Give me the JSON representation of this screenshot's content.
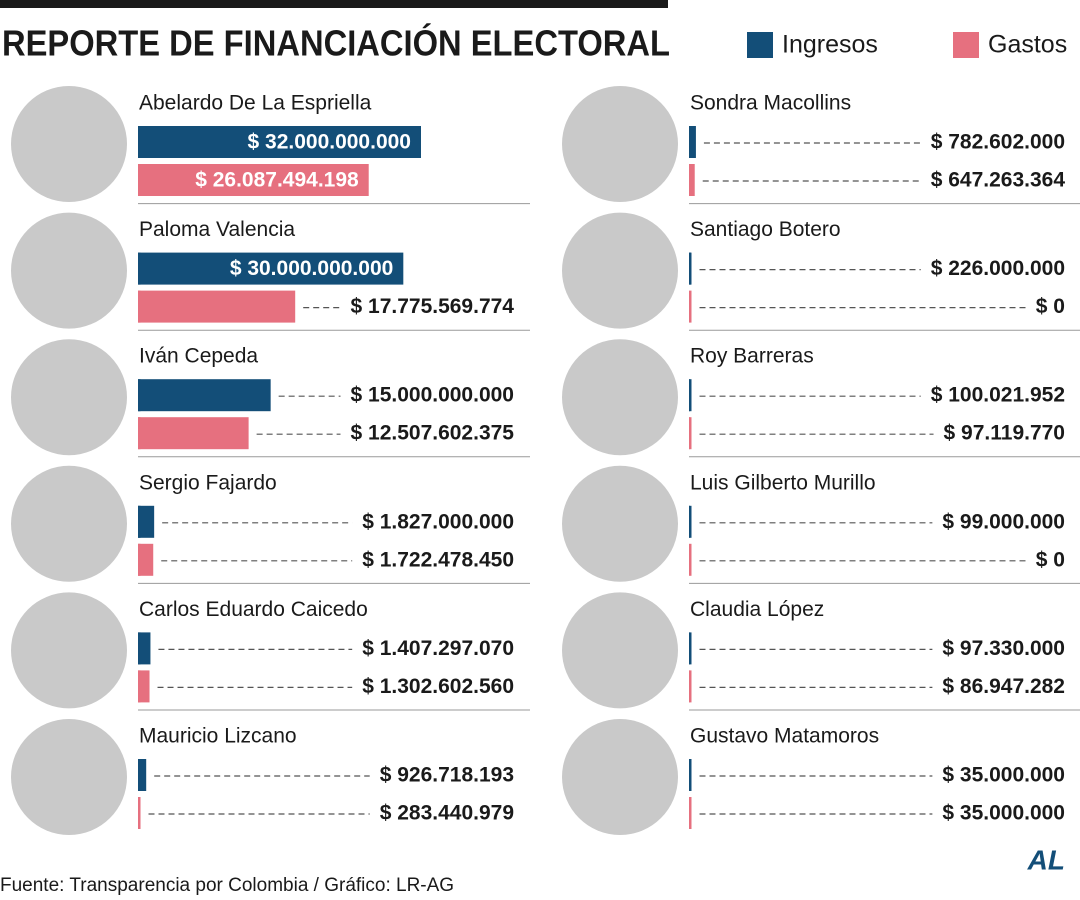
{
  "chart_data": {
    "type": "hbar",
    "title": "REPORTE DE FINANCIACIÓN ELECTORAL",
    "categories": [
      "Abelardo De La Espriella",
      "Paloma Valencia",
      "Iván Cepeda",
      "Sergio Fajardo",
      "Carlos Eduardo Caicedo",
      "Mauricio Lizcano",
      "Sondra Macollins",
      "Santiago Botero",
      "Roy Barreras",
      "Luis Gilberto Murillo",
      "Claudia López",
      "Gustavo Matamoros"
    ],
    "series": [
      {
        "name": "Ingresos",
        "color": "#134e78",
        "values": [
          32000000000,
          30000000000,
          15000000000,
          1827000000,
          1407297070,
          926718193,
          782602000,
          226000000,
          100021952,
          99000000,
          97330000,
          35000000
        ],
        "value_labels": [
          "$ 32.000.000.000",
          "$ 30.000.000.000",
          "$ 15.000.000.000",
          "$ 1.827.000.000",
          "$ 1.407.297.070",
          "$ 926.718.193",
          "$ 782.602.000",
          "$ 226.000.000",
          "$ 100.021.952",
          "$ 99.000.000",
          "$ 97.330.000",
          "$ 35.000.000"
        ]
      },
      {
        "name": "Gastos",
        "color": "#e6707f",
        "values": [
          26087494198,
          17775569774,
          12507602375,
          1722478450,
          1302602560,
          283440979,
          647263364,
          0,
          97119770,
          0,
          86947282,
          35000000
        ],
        "value_labels": [
          "$ 26.087.494.198",
          "$ 17.775.569.774",
          "$ 12.507.602.375",
          "$ 1.722.478.450",
          "$ 1.302.602.560",
          "$ 283.440.979",
          "$ 647.263.364",
          "$ 0",
          "$ 97.119.770",
          "$ 0",
          "$ 86.947.282",
          "$ 35.000.000"
        ]
      }
    ],
    "xlim": [
      0,
      32000000000
    ],
    "source": "Fuente: Transparencia por Colombia / Gráfico: LR-AG",
    "logo": "AL"
  }
}
